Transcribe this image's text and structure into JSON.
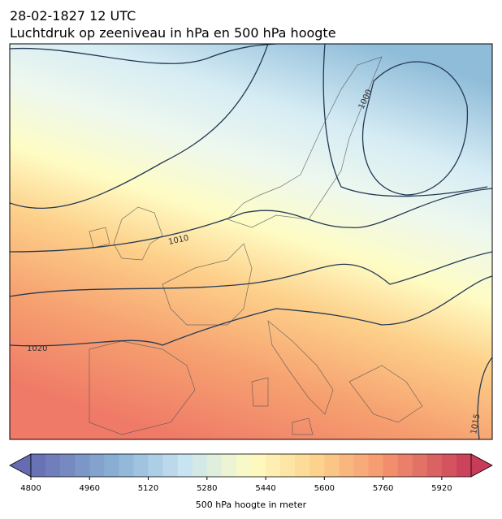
{
  "title": "28-02-1827 12 UTC",
  "subtitle": "Luchtdruk op zeeniveau in hPa en 500 hPa hoogte",
  "isobar_labels": [
    "1000",
    "1010",
    "1020",
    "1015"
  ],
  "colorbar": {
    "label": "500 hPa hoogte in meter",
    "lim": [
      4800,
      6000
    ],
    "ticks": [
      4800,
      4960,
      5120,
      5280,
      5440,
      5600,
      5760,
      5920
    ],
    "step": 40
  }
}
